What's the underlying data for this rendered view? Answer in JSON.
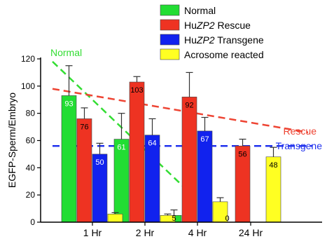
{
  "chart_data": {
    "type": "bar",
    "ylabel": "EGFP-Sperm/Embryo",
    "ylim": [
      0,
      120
    ],
    "yticks": [
      0,
      20,
      40,
      60,
      80,
      100,
      120
    ],
    "categories": [
      "1 Hr",
      "2 Hr",
      "4 Hr",
      "24 Hr"
    ],
    "series": [
      {
        "name": "Normal",
        "color": "#22dd33",
        "values": [
          93,
          61,
          5,
          0
        ],
        "errors": [
          22,
          19,
          4,
          null
        ],
        "data_labels": [
          "93",
          "61",
          "5",
          "0"
        ]
      },
      {
        "name_prefix": "Hu",
        "name_italic": "ZP2",
        "name_suffix": " Rescue",
        "color": "#ee3322",
        "values": [
          76,
          103,
          92,
          56
        ],
        "errors": [
          8,
          4,
          18,
          5
        ],
        "data_labels": [
          "76",
          "103",
          "92",
          "56"
        ]
      },
      {
        "name_prefix": "Hu",
        "name_italic": "ZP2",
        "name_suffix": " Transgene",
        "color": "#1122ee",
        "values": [
          50,
          64,
          67,
          0
        ],
        "errors": [
          8,
          12,
          10,
          null
        ],
        "data_labels": [
          "50",
          "64",
          "67",
          ""
        ]
      },
      {
        "name": "Acrosome reacted",
        "color": "#ffff22",
        "values": [
          6,
          5,
          15,
          48
        ],
        "errors": [
          1,
          1,
          3,
          7
        ],
        "data_labels": [
          "",
          "",
          "",
          "48"
        ]
      }
    ],
    "trend_lines": [
      {
        "label": "Normal",
        "color": "#33dd33",
        "y_start": 118,
        "y_end": 5
      },
      {
        "label": "Rescue",
        "color": "#ee4433",
        "y_start": 98,
        "y_end": 66
      },
      {
        "label": "Transgene",
        "color": "#2233ee",
        "y_start": 56,
        "y_end": 56
      }
    ],
    "grid": false,
    "legend_position": "top-right"
  }
}
